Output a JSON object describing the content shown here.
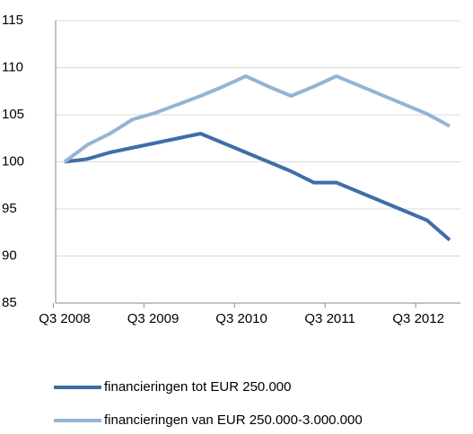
{
  "chart_data": {
    "type": "line",
    "categories": [
      "Q3 2008",
      null,
      null,
      null,
      "Q3 2009",
      null,
      null,
      null,
      "Q3 2010",
      null,
      null,
      null,
      "Q3 2011",
      null,
      null,
      null,
      "Q3 2012",
      null
    ],
    "series": [
      {
        "name": "financieringen tot EUR 250.000",
        "color": "#3f6ea7",
        "values": [
          100,
          100.3,
          101,
          101.5,
          102,
          102.5,
          103,
          102,
          101,
          100,
          99,
          97.8,
          97.8,
          96.8,
          95.8,
          94.8,
          93.8,
          91.7
        ]
      },
      {
        "name": "financieringen van EUR 250.000-3.000.000",
        "color": "#95b3d7",
        "values": [
          100,
          101.8,
          103,
          104.5,
          105.2,
          106.1,
          107,
          108,
          109.1,
          108,
          107,
          108,
          109.1,
          108.1,
          107.1,
          106.1,
          105.1,
          103.8
        ]
      }
    ],
    "ylim": [
      85,
      115
    ],
    "yticks": [
      85,
      90,
      95,
      100,
      105,
      110,
      115
    ],
    "grid": true
  }
}
